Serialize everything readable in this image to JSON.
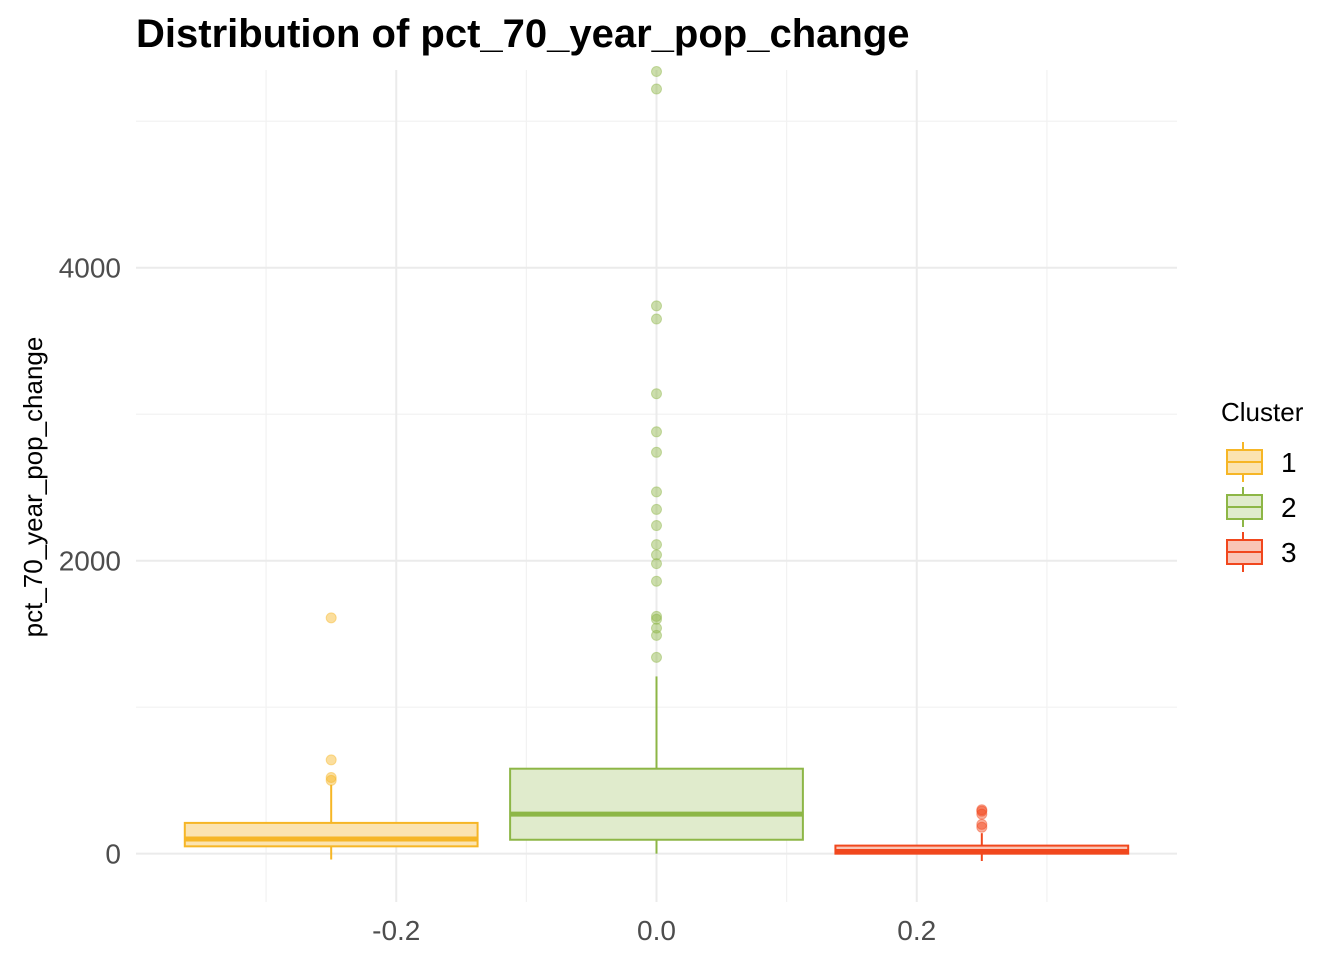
{
  "chart_data": {
    "type": "box",
    "title": "Distribution of pct_70_year_pop_change",
    "xlabel": "",
    "ylabel": "pct_70_year_pop_change",
    "xlim": [
      -0.4,
      0.4
    ],
    "ylim": [
      -330,
      5350
    ],
    "x_ticks": [
      -0.2,
      0.0,
      0.2
    ],
    "x_tick_labels": [
      "-0.2",
      "0.0",
      "0.2"
    ],
    "y_ticks": [
      0,
      2000,
      4000
    ],
    "y_tick_labels": [
      "0",
      "2000",
      "4000"
    ],
    "grid": true,
    "legend": {
      "title": "Cluster",
      "position": "right"
    },
    "series": [
      {
        "name": "1",
        "x_center": -0.25,
        "box_width": 0.225,
        "color": "#F6B626",
        "fill": "#FBE3B0",
        "whisker_low": -40,
        "q1": 50,
        "median": 100,
        "q3": 210,
        "whisker_high": 470,
        "outliers": [
          520,
          500,
          640,
          1610
        ]
      },
      {
        "name": "2",
        "x_center": 0.0,
        "box_width": 0.225,
        "color": "#8DB646",
        "fill": "#E0EBCC",
        "whisker_low": 0,
        "q1": 95,
        "median": 270,
        "q3": 580,
        "whisker_high": 1210,
        "outliers": [
          1340,
          1490,
          1540,
          1600,
          1620,
          1860,
          1980,
          2040,
          2110,
          2240,
          2350,
          2470,
          2740,
          2880,
          3140,
          3650,
          3740,
          5220,
          5340
        ]
      },
      {
        "name": "3",
        "x_center": 0.25,
        "box_width": 0.225,
        "color": "#F1471D",
        "fill": "#F9C5B6",
        "whisker_low": -50,
        "q1": 0,
        "median": 15,
        "q3": 55,
        "whisker_high": 140,
        "outliers": [
          180,
          200,
          270,
          290,
          300
        ]
      }
    ]
  }
}
